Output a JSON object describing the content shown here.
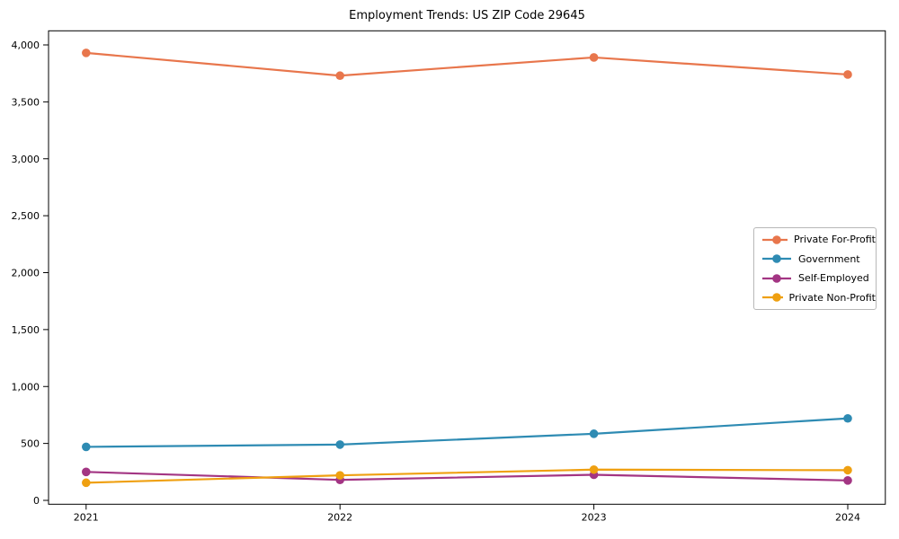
{
  "chart_data": {
    "type": "line",
    "title": "Employment Trends: US ZIP Code 29645",
    "xlabel": "",
    "ylabel": "",
    "categories": [
      "2021",
      "2022",
      "2023",
      "2024"
    ],
    "series": [
      {
        "name": "Private For-Profit",
        "color": "#e8764c",
        "values": [
          3930,
          3730,
          3890,
          3740
        ]
      },
      {
        "name": "Government",
        "color": "#2e8bb3",
        "values": [
          470,
          490,
          585,
          720
        ]
      },
      {
        "name": "Self-Employed",
        "color": "#a33583",
        "values": [
          250,
          180,
          225,
          175
        ]
      },
      {
        "name": "Private Non-Profit",
        "color": "#efa011",
        "values": [
          155,
          220,
          270,
          265
        ]
      }
    ],
    "y_ticks": [
      0,
      500,
      1000,
      1500,
      2000,
      2500,
      3000,
      3500,
      4000
    ],
    "y_tick_labels": [
      "0",
      "500",
      "1,000",
      "1,500",
      "2,000",
      "2,500",
      "3,000",
      "3,500",
      "4,000"
    ],
    "ylim": [
      -34,
      4124
    ],
    "grid": false,
    "legend_position": "center-right",
    "marker": "circle",
    "background_color": "#ffffff",
    "axis_color": "#000000"
  }
}
